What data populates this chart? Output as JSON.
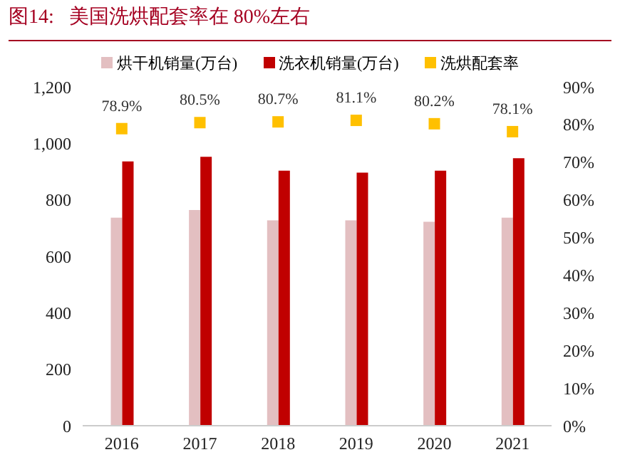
{
  "chart_data": {
    "type": "bar",
    "title": "图14:   美国洗烘配套率在 80%左右",
    "categories": [
      "2016",
      "2017",
      "2018",
      "2019",
      "2020",
      "2021"
    ],
    "series": [
      {
        "name": "烘干机销量(万台)",
        "color": "#e3bfc1",
        "values": [
          737,
          764,
          727,
          727,
          722,
          737
        ]
      },
      {
        "name": "洗衣机销量(万台)",
        "color": "#c00000",
        "values": [
          936,
          952,
          903,
          896,
          903,
          947
        ]
      },
      {
        "name": "洗烘配套率",
        "type": "scatter",
        "axis": "y2",
        "marker": "square",
        "color": "#ffc000",
        "values": [
          78.9,
          80.5,
          80.7,
          81.1,
          80.2,
          78.1
        ],
        "value_labels": [
          "78.9%",
          "80.5%",
          "80.7%",
          "81.1%",
          "80.2%",
          "78.1%"
        ]
      }
    ],
    "ylim": [
      0,
      1200
    ],
    "yticks": [
      0,
      200,
      400,
      600,
      800,
      {
        "value": 1000,
        "label": "1,000"
      },
      {
        "value": 1200,
        "label": "1,200"
      }
    ],
    "y2lim": [
      0,
      90
    ],
    "y2ticks": [
      {
        "value": 0,
        "label": "0%"
      },
      {
        "value": 10,
        "label": "10%"
      },
      {
        "value": 20,
        "label": "20%"
      },
      {
        "value": 30,
        "label": "30%"
      },
      {
        "value": 40,
        "label": "40%"
      },
      {
        "value": 50,
        "label": "50%"
      },
      {
        "value": 60,
        "label": "60%"
      },
      {
        "value": 70,
        "label": "70%"
      },
      {
        "value": 80,
        "label": "80%"
      },
      {
        "value": 90,
        "label": "90%"
      }
    ],
    "grid": false,
    "legend": "top"
  }
}
